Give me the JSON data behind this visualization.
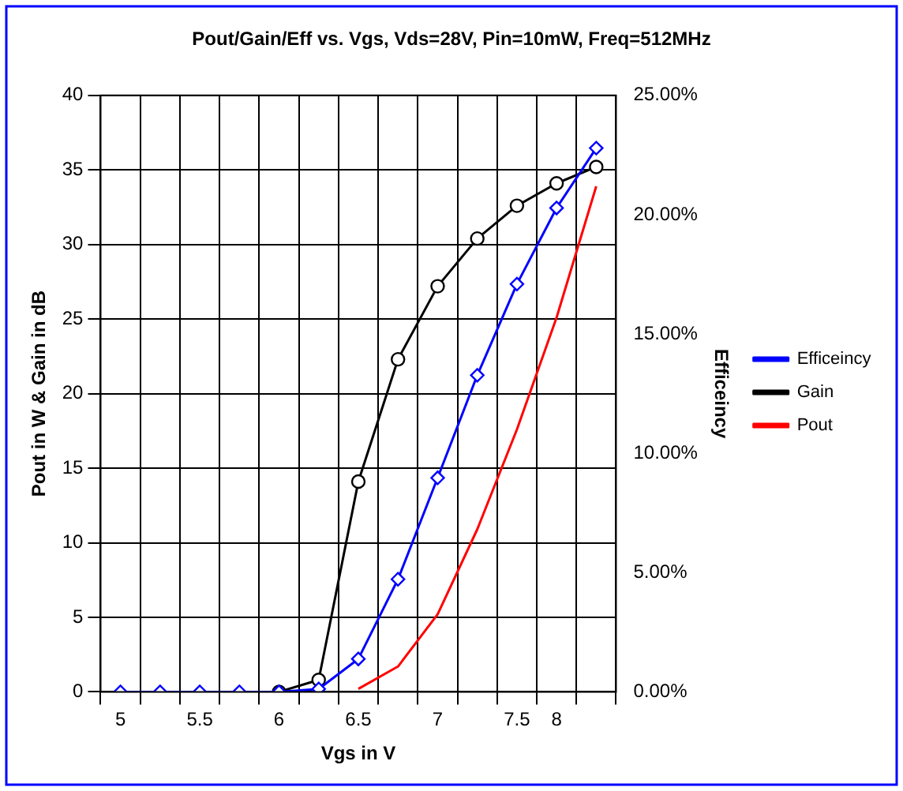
{
  "chart_data": {
    "type": "line",
    "title": "Pout/Gain/Eff vs. Vgs, Vds=28V, Pin=10mW, Freq=512MHz",
    "xlabel": "Vgs in V",
    "ylabel": "Pout in W & Gain in dB",
    "y2label": "Efficeincy",
    "categories": [
      "5",
      null,
      "5.5",
      null,
      "6",
      null,
      "6.5",
      null,
      "7",
      null,
      "7.5",
      "8",
      null
    ],
    "series": [
      {
        "name": "Pout",
        "color": "#ff0000",
        "marker": "none",
        "values": [
          null,
          null,
          null,
          null,
          null,
          null,
          0.2,
          1.7,
          5.2,
          10.9,
          17.6,
          25.1,
          33.9
        ]
      },
      {
        "name": "Gain",
        "color": "#000000",
        "marker": "circle",
        "values": [
          null,
          null,
          null,
          null,
          0,
          0.8,
          14.1,
          22.3,
          27.2,
          30.4,
          32.6,
          34.1,
          35.2
        ]
      },
      {
        "name": "Efficeincy",
        "color": "#0000ff",
        "marker": "diamond",
        "axis": "y2",
        "values": [
          0,
          0,
          0,
          0,
          0,
          0.12,
          1.38,
          4.72,
          8.97,
          13.27,
          17.09,
          20.28,
          22.79
        ]
      }
    ],
    "ylim": [
      0,
      40
    ],
    "yticks": [
      0,
      5,
      10,
      15,
      20,
      25,
      30,
      35,
      40
    ],
    "y2lim": [
      0,
      25
    ],
    "y2ticks": [
      {
        "value": 0,
        "label": "0.00%"
      },
      {
        "value": 5,
        "label": "5.00%"
      },
      {
        "value": 10,
        "label": "10.00%"
      },
      {
        "value": 15,
        "label": "15.00%"
      },
      {
        "value": 20,
        "label": "20.00%"
      },
      {
        "value": 25,
        "label": "25.00%"
      }
    ],
    "grid": true,
    "legend": "right",
    "line_style": "solid"
  }
}
